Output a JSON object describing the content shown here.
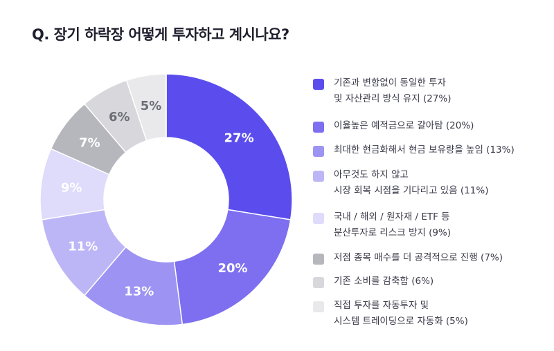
{
  "title": "Q. 장기 하락장 어떻게 투자하고 계시나요?",
  "chart_data": {
    "type": "pie",
    "title": "Q. 장기 하락장 어떻게 투자하고 계시나요?",
    "slices": [
      {
        "name": "기존과 변함없이 동일한 투자 및 자산관리 방식 유지",
        "value": 27,
        "label": "27%",
        "color": "#5b4ded",
        "label_color": "#ffffff",
        "legend_lines": [
          "기존과 변함없이 동일한 투자",
          "및 자산관리 방식 유지 (27%)"
        ]
      },
      {
        "name": "이율높은 예적금으로 갈아탐",
        "value": 20,
        "label": "20%",
        "color": "#7d6ff0",
        "label_color": "#ffffff",
        "legend_lines": [
          "이율높은 예적금으로 갈아탐 (20%)"
        ]
      },
      {
        "name": "최대한 현금화해서 현금 보유량을 높임",
        "value": 13,
        "label": "13%",
        "color": "#9d93f3",
        "label_color": "#ffffff",
        "legend_lines": [
          "최대한 현금화해서 현금 보유량을 높임 (13%)"
        ]
      },
      {
        "name": "아무것도 하지 않고 시장 회복 시점을 기다리고 있음",
        "value": 11,
        "label": "11%",
        "color": "#bdb6f6",
        "label_color": "#ffffff",
        "legend_lines": [
          "아무것도 하지 않고",
          "시장 회복 시점을 기다리고 있음 (11%)"
        ]
      },
      {
        "name": "국내 / 해외 / 원자재 / ETF 등 분산투자로 리스크 방지",
        "value": 9,
        "label": "9%",
        "color": "#dedbfb",
        "label_color": "#ffffff",
        "legend_lines": [
          "국내 / 해외 / 원자재 / ETF 등",
          "분산투자로 리스크 방지 (9%)"
        ]
      },
      {
        "name": "저점 종목 매수를 더 공격적으로 진행",
        "value": 7,
        "label": "7%",
        "color": "#b6b6bd",
        "label_color": "#ffffff",
        "legend_lines": [
          "저점 종목 매수를 더 공격적으로 진행 (7%)"
        ]
      },
      {
        "name": "기존 소비를 감축함",
        "value": 6,
        "label": "6%",
        "color": "#d7d7dc",
        "label_color": "#6e6e78",
        "legend_lines": [
          "기존 소비를 감축함 (6%)"
        ]
      },
      {
        "name": "직접 투자를 자동투자 및 시스템 트레이딩으로 자동화",
        "value": 5,
        "label": "5%",
        "color": "#e9e9ec",
        "label_color": "#6e6e78",
        "legend_lines": [
          "직접 투자를 자동투자 및",
          "시스템 트레이딩으로 자동화 (5%)"
        ]
      }
    ]
  }
}
